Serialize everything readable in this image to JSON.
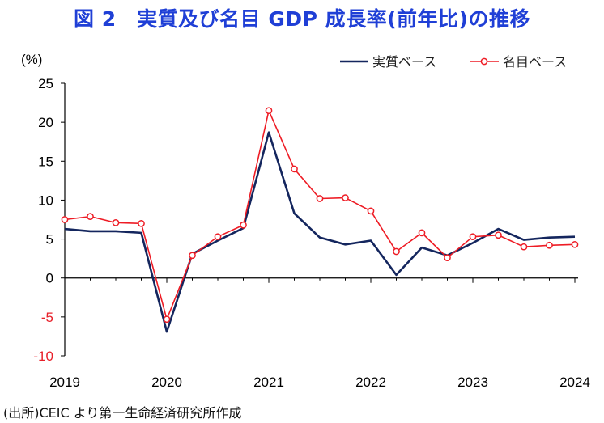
{
  "title": "図 2　実質及び名目 GDP 成長率(前年比)の推移",
  "source": "(出所)CEIC より第一生命経済研究所作成",
  "chart_data": {
    "type": "line",
    "title": "図 2　実質及び名目 GDP 成長率(前年比)の推移",
    "ylabel": "(%)",
    "xlabel": "",
    "ylim": [
      -10,
      25
    ],
    "yticks": [
      25,
      20,
      15,
      10,
      5,
      0,
      -5,
      -10
    ],
    "xlim": [
      2019.0,
      2024.0
    ],
    "xtick_labels": [
      "2019",
      "2020",
      "2021",
      "2022",
      "2023",
      "2024"
    ],
    "grid": false,
    "legend_position": "top-right",
    "x": [
      2019.0,
      2019.25,
      2019.5,
      2019.75,
      2020.0,
      2020.25,
      2020.5,
      2020.75,
      2021.0,
      2021.25,
      2021.5,
      2021.75,
      2022.0,
      2022.25,
      2022.5,
      2022.75,
      2023.0,
      2023.25,
      2023.5,
      2023.75,
      2024.0
    ],
    "series": [
      {
        "name": "実質ベース",
        "color": "#14265e",
        "marker": "none",
        "values": [
          6.3,
          6.0,
          6.0,
          5.8,
          -6.9,
          3.1,
          4.8,
          6.4,
          18.7,
          8.3,
          5.2,
          4.3,
          4.8,
          0.4,
          3.9,
          2.9,
          4.5,
          6.3,
          4.9,
          5.2,
          5.3
        ]
      },
      {
        "name": "名目ベース",
        "color": "#ee1c25",
        "marker": "circle",
        "values": [
          7.5,
          7.9,
          7.1,
          7.0,
          -5.3,
          2.9,
          5.3,
          6.8,
          21.5,
          14.0,
          10.2,
          10.3,
          8.6,
          3.4,
          5.8,
          2.6,
          5.3,
          5.5,
          4.0,
          4.2,
          4.3
        ]
      }
    ]
  }
}
